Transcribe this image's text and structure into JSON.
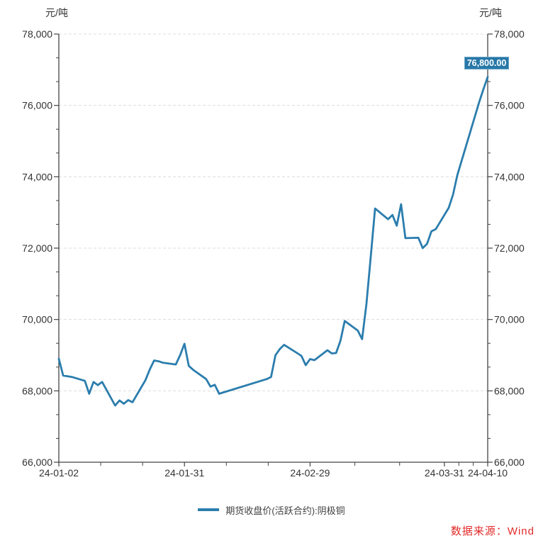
{
  "chart": {
    "unit_left": "元/吨",
    "unit_right": "元/吨",
    "last_value_label": "76,800.00",
    "series_name": "期货收盘价(活跃合约):阴极铜",
    "source": "数据来源：Wind"
  },
  "colors": {
    "line": "#2b7dad",
    "badge_bg": "#2878a8",
    "badge_border": "#6aa5c6",
    "badge_text": "#ffffff",
    "axis": "#444444",
    "tick_label": "#333333",
    "grid": "#dcdcdc",
    "legend_text": "#404040",
    "source_text": "#e22a29"
  },
  "chart_data": {
    "type": "line",
    "title": "",
    "xlabel": "",
    "ylabel": "元/吨",
    "ylim": [
      66000,
      78000
    ],
    "y_tick_step": 2000,
    "y_tick_labels": [
      "66,000",
      "68,000",
      "70,000",
      "72,000",
      "74,000",
      "76,000",
      "78,000"
    ],
    "x_tick_labels": [
      "24-01-02",
      "24-01-31",
      "24-02-29",
      "24-03-31",
      "24-04-10"
    ],
    "grid": "horizontal-dashed",
    "legend_position": "bottom-center",
    "last_value": 76800,
    "x": [
      "24-01-02",
      "24-01-03",
      "24-01-04",
      "24-01-05",
      "24-01-08",
      "24-01-09",
      "24-01-10",
      "24-01-11",
      "24-01-12",
      "24-01-15",
      "24-01-16",
      "24-01-17",
      "24-01-18",
      "24-01-19",
      "24-01-22",
      "24-01-23",
      "24-01-24",
      "24-01-25",
      "24-01-26",
      "24-01-29",
      "24-01-30",
      "24-01-31",
      "24-02-01",
      "24-02-02",
      "24-02-05",
      "24-02-06",
      "24-02-07",
      "24-02-08",
      "24-02-19",
      "24-02-20",
      "24-02-21",
      "24-02-22",
      "24-02-23",
      "24-02-26",
      "24-02-27",
      "24-02-28",
      "24-02-29",
      "24-03-01",
      "24-03-04",
      "24-03-05",
      "24-03-06",
      "24-03-07",
      "24-03-08",
      "24-03-11",
      "24-03-12",
      "24-03-13",
      "24-03-14",
      "24-03-15",
      "24-03-18",
      "24-03-19",
      "24-03-20",
      "24-03-21",
      "24-03-22",
      "24-03-25",
      "24-03-26",
      "24-03-27",
      "24-03-28",
      "24-03-29",
      "24-04-01",
      "24-04-02",
      "24-04-03",
      "24-04-08",
      "24-04-09",
      "24-04-10"
    ],
    "series": [
      {
        "name": "期货收盘价(活跃合约):阴极铜",
        "values": [
          68900,
          68430,
          68410,
          68390,
          68280,
          67920,
          68250,
          68160,
          68250,
          67590,
          67730,
          67640,
          67740,
          67680,
          68300,
          68600,
          68850,
          68830,
          68790,
          68740,
          69000,
          69320,
          68700,
          68590,
          68330,
          68120,
          68170,
          67920,
          68330,
          68390,
          69000,
          69170,
          69290,
          69060,
          68980,
          68720,
          68890,
          68860,
          69140,
          69050,
          69060,
          69400,
          69960,
          69690,
          69450,
          70430,
          71760,
          73110,
          72810,
          72930,
          72630,
          73230,
          72280,
          72290,
          72000,
          72120,
          72470,
          72530,
          73130,
          73500,
          74050,
          76080,
          76450,
          76800
        ]
      }
    ]
  }
}
